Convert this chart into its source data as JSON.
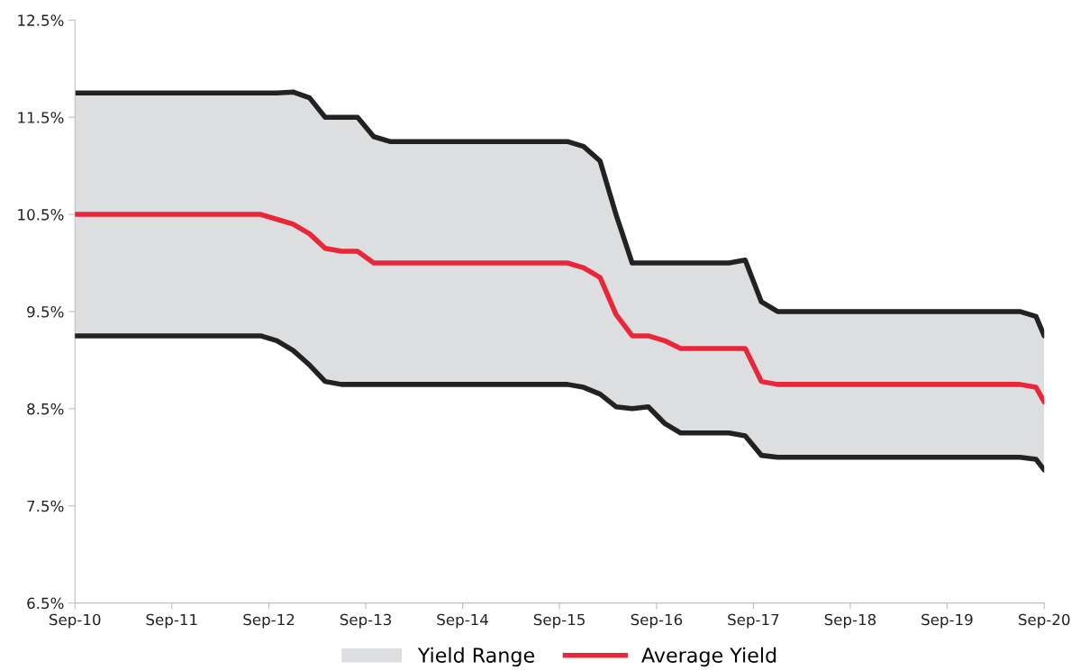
{
  "chart_data": {
    "type": "line",
    "x": [
      "2010-09",
      "2012-08",
      "2012-10",
      "2012-12",
      "2013-02",
      "2013-04",
      "2013-06",
      "2013-08",
      "2013-10",
      "2013-12",
      "2015-10",
      "2015-12",
      "2016-02",
      "2016-04",
      "2016-06",
      "2016-08",
      "2016-10",
      "2016-12",
      "2017-06",
      "2017-08",
      "2017-10",
      "2017-12",
      "2020-06",
      "2020-08",
      "2020-09"
    ],
    "series": [
      {
        "type": "line",
        "color": "#222222",
        "values": [
          9.25,
          9.25,
          9.2,
          9.1,
          8.95,
          8.78,
          8.75,
          8.75,
          8.75,
          8.75,
          8.75,
          8.72,
          8.65,
          8.52,
          8.5,
          8.52,
          8.35,
          8.25,
          8.25,
          8.22,
          8.02,
          8.0,
          8.0,
          7.98,
          7.87
        ]
      },
      {
        "name": "Yield Range",
        "type": "area",
        "color": "#dcdee0",
        "values": [
          11.75,
          11.75,
          11.75,
          11.76,
          11.7,
          11.5,
          11.5,
          11.5,
          11.3,
          11.25,
          11.25,
          11.2,
          11.05,
          10.5,
          10.0,
          10.0,
          10.0,
          10.0,
          10.0,
          10.03,
          9.6,
          9.5,
          9.5,
          9.45,
          9.25
        ]
      },
      {
        "name": "Average Yield",
        "color": "#e8283a",
        "values": [
          10.5,
          10.5,
          10.45,
          10.4,
          10.3,
          10.15,
          10.12,
          10.12,
          10.0,
          10.0,
          10.0,
          9.95,
          9.85,
          9.47,
          9.25,
          9.25,
          9.2,
          9.12,
          9.12,
          9.12,
          8.78,
          8.75,
          8.75,
          8.72,
          8.57
        ]
      }
    ],
    "xlim": [
      "2010-09",
      "2020-09"
    ],
    "xticks": [
      {
        "value": "2010-09",
        "label": "Sep-10"
      },
      {
        "value": "2011-09",
        "label": "Sep-11"
      },
      {
        "value": "2012-09",
        "label": "Sep-12"
      },
      {
        "value": "2013-09",
        "label": "Sep-13"
      },
      {
        "value": "2014-09",
        "label": "Sep-14"
      },
      {
        "value": "2015-09",
        "label": "Sep-15"
      },
      {
        "value": "2016-09",
        "label": "Sep-16"
      },
      {
        "value": "2017-09",
        "label": "Sep-17"
      },
      {
        "value": "2018-09",
        "label": "Sep-18"
      },
      {
        "value": "2019-09",
        "label": "Sep-19"
      },
      {
        "value": "2020-09",
        "label": "Sep-20"
      }
    ],
    "ylim": [
      6.5,
      12.5
    ],
    "yticks": [
      {
        "value": 6.5,
        "label": "6.5%"
      },
      {
        "value": 7.5,
        "label": "7.5%"
      },
      {
        "value": 8.5,
        "label": "8.5%"
      },
      {
        "value": 9.5,
        "label": "9.5%"
      },
      {
        "value": 10.5,
        "label": "10.5%"
      },
      {
        "value": 11.5,
        "label": "11.5%"
      },
      {
        "value": 12.5,
        "label": "12.5%"
      }
    ],
    "grid": false,
    "legend": "bottom",
    "line_style": "solid",
    "marker": "none"
  }
}
